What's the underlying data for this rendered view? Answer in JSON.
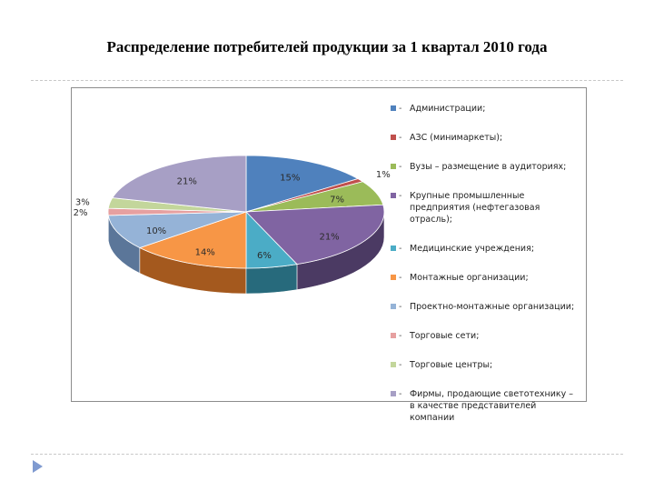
{
  "slide": {
    "title": "Распределение потребителей продукции за 1 квартал 2010 года"
  },
  "chart_data": {
    "type": "pie",
    "title": "",
    "start_angle_deg": 0,
    "legend_position": "right",
    "slices": [
      {
        "label": "Администрации;",
        "value": 15,
        "value_label": "15%",
        "color": "#4f81bd",
        "side_color": "#2f4f78"
      },
      {
        "label": "АЗС (минимаркеты);",
        "value": 1,
        "value_label": "1%",
        "color": "#c0504d",
        "side_color": "#7a2f2d"
      },
      {
        "label": "Вузы – размещение в аудиториях;",
        "value": 7,
        "value_label": "7%",
        "color": "#9bbb59",
        "side_color": "#5e7730"
      },
      {
        "label": "Крупные промышленные предприятия (нефтегазовая отрасль);",
        "value": 21,
        "value_label": "21%",
        "color": "#8064a2",
        "side_color": "#4b3a63"
      },
      {
        "label": "Медицинские учреждения;",
        "value": 6,
        "value_label": "6%",
        "color": "#4bacc6",
        "side_color": "#276a7c"
      },
      {
        "label": "Монтажные организации;",
        "value": 14,
        "value_label": "14%",
        "color": "#f79646",
        "side_color": "#a4591e"
      },
      {
        "label": "Проектно-монтажные организации;",
        "value": 10,
        "value_label": "10%",
        "color": "#95b3d7",
        "side_color": "#5b7699"
      },
      {
        "label": "Торговые сети;",
        "value": 2,
        "value_label": "2%",
        "color": "#e6a0a0",
        "side_color": "#a86464"
      },
      {
        "label": "Торговые центры;",
        "value": 3,
        "value_label": "3%",
        "color": "#c3d69b",
        "side_color": "#84955d"
      },
      {
        "label": "Фирмы, продающие светотехнику – в качестве представителей компании",
        "value": 21,
        "value_label": "21%",
        "color": "#a79fc5",
        "side_color": "#6b6589"
      }
    ]
  }
}
